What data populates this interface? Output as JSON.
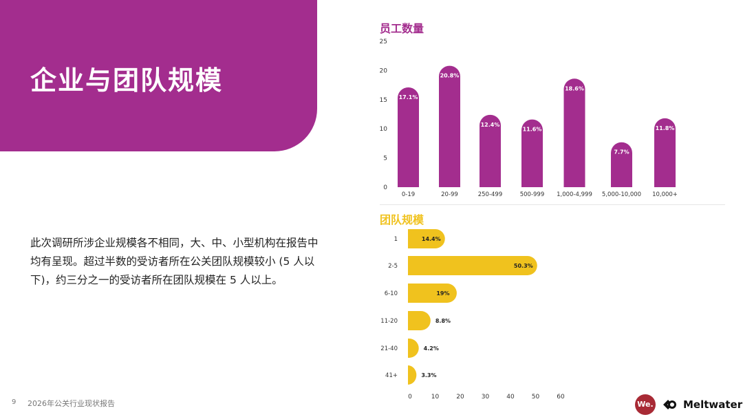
{
  "page": {
    "title": "企业与团队规模",
    "body": "此次调研所涉企业规模各不相同，大、中、小型机构在报告中均有呈现。超过半数的受访者所在公关团队规模较小 (5 人以下)，约三分之一的受访者所在团队规模在 5 人以上。",
    "footer_page": "9",
    "footer_title": "2026年公关行业现状报告",
    "logo_we": "We.",
    "logo_meltwater": "Meltwater"
  },
  "colors": {
    "purple": "#a32d8e",
    "yellow": "#f0c21e"
  },
  "chart_data": [
    {
      "type": "bar",
      "orientation": "vertical",
      "title": "员工数量",
      "categories": [
        "0-19",
        "20-99",
        "250-499",
        "500-999",
        "1,000-4,999",
        "5,000-10,000",
        "10,000+"
      ],
      "values": [
        17.1,
        20.8,
        12.4,
        11.6,
        18.6,
        7.7,
        11.8
      ],
      "labels": [
        "17.1%",
        "20.8%",
        "12.4%",
        "11.6%",
        "18.6%",
        "7.7%",
        "11.8%"
      ],
      "ylim": [
        0,
        25
      ],
      "yticks": [
        0,
        5,
        10,
        15,
        20,
        25
      ],
      "color": "#a32d8e"
    },
    {
      "type": "bar",
      "orientation": "horizontal",
      "title": "团队规模",
      "categories": [
        "1",
        "2-5",
        "6-10",
        "11-20",
        "21-40",
        "41+"
      ],
      "values": [
        14.4,
        50.3,
        19,
        8.8,
        4.2,
        3.3
      ],
      "labels": [
        "14.4%",
        "50.3%",
        "19%",
        "8.8%",
        "4.2%",
        "3.3%"
      ],
      "xlim": [
        0,
        60
      ],
      "xticks": [
        0,
        10,
        20,
        30,
        40,
        50,
        60
      ],
      "color": "#f0c21e"
    }
  ]
}
